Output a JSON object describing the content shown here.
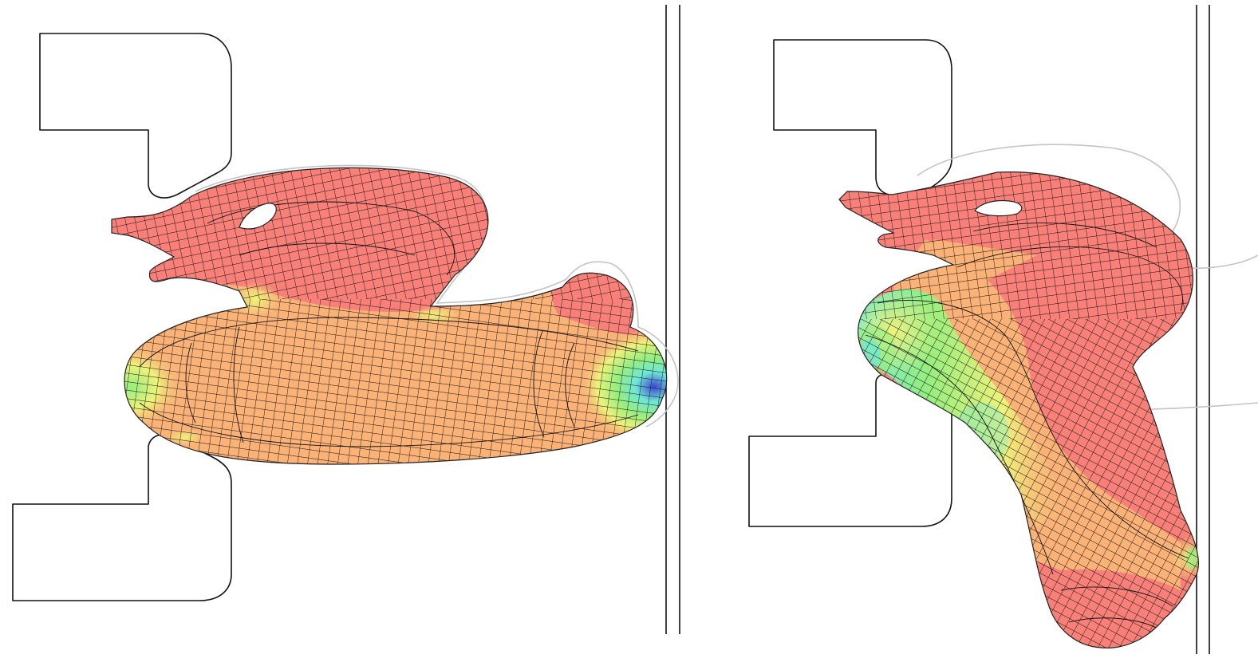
{
  "figure": {
    "panels": [
      {
        "state": "before",
        "mesh": "quad"
      },
      {
        "state": "after",
        "mesh": "quad"
      }
    ],
    "colors": {
      "high": "#f88078",
      "mid": "#fbb277",
      "low_mid": "#eef27a",
      "low": "#96ee7e",
      "lower": "#6ee8d6",
      "min": "#3d46d8",
      "tool_outline": "#111111",
      "undeformed_outline": "#c4c4c4"
    },
    "icons": []
  }
}
